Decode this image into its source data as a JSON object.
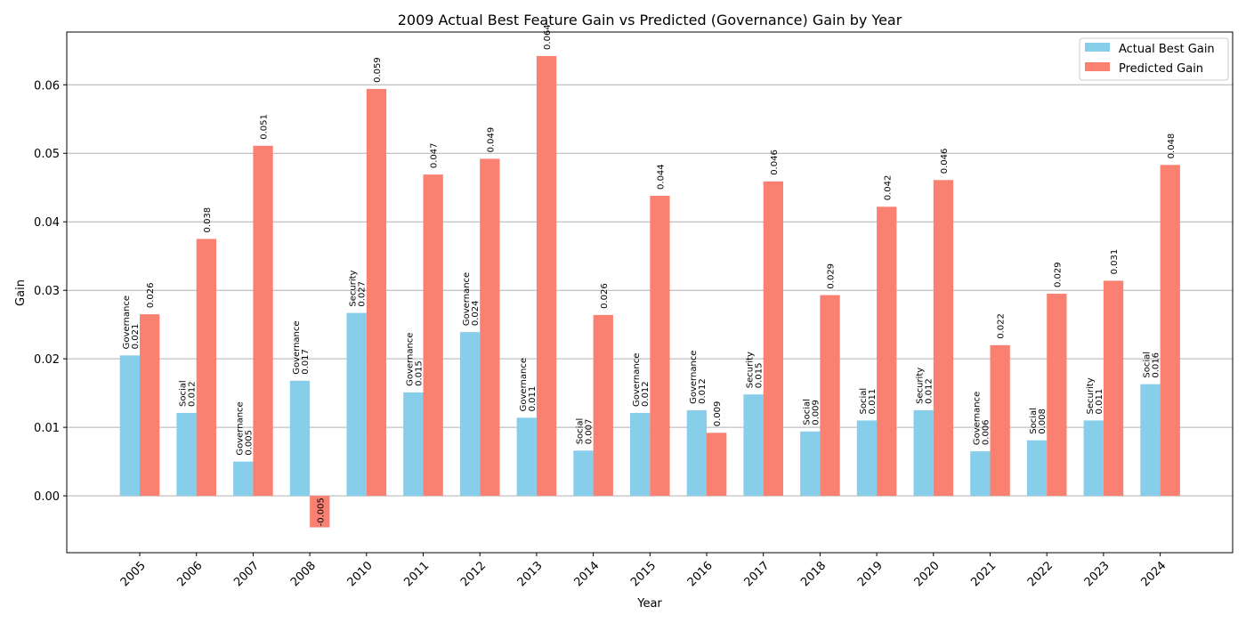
{
  "chart_data": {
    "type": "bar",
    "title": "2009 Actual Best Feature Gain vs Predicted (Governance) Gain by Year",
    "xlabel": "Year",
    "ylabel": "Gain",
    "ylim": [
      -0.0083,
      0.0677
    ],
    "yticks": [
      "0.00",
      "0.01",
      "0.02",
      "0.03",
      "0.04",
      "0.05",
      "0.06"
    ],
    "ytick_values": [
      0,
      0.01,
      0.02,
      0.03,
      0.04,
      0.05,
      0.06
    ],
    "grid": "y-major",
    "legend_position": "top-right",
    "categories": [
      "2005",
      "2006",
      "2007",
      "2008",
      "2010",
      "2011",
      "2012",
      "2013",
      "2014",
      "2015",
      "2016",
      "2017",
      "2018",
      "2019",
      "2020",
      "2021",
      "2022",
      "2023",
      "2024"
    ],
    "series": [
      {
        "name": "Actual Best Gain",
        "color": "#87CEEB",
        "values": [
          0.0205,
          0.0121,
          0.005,
          0.0168,
          0.0267,
          0.0151,
          0.0239,
          0.0114,
          0.0066,
          0.0121,
          0.0125,
          0.0148,
          0.0094,
          0.011,
          0.0125,
          0.0065,
          0.0081,
          0.011,
          0.0163
        ],
        "value_labels": [
          "0.021",
          "0.012",
          "0.005",
          "0.017",
          "0.027",
          "0.015",
          "0.024",
          "0.011",
          "0.007",
          "0.012",
          "0.012",
          "0.015",
          "0.009",
          "0.011",
          "0.012",
          "0.006",
          "0.008",
          "0.011",
          "0.016"
        ],
        "feature_labels": [
          "Governance",
          "Social",
          "Governance",
          "Governance",
          "Security",
          "Governance",
          "Governance",
          "Governance",
          "Social",
          "Governance",
          "Governance",
          "Security",
          "Social",
          "Social",
          "Security",
          "Governance",
          "Social",
          "Security",
          "Social"
        ]
      },
      {
        "name": "Predicted Gain",
        "color": "#FA8072",
        "values": [
          0.0265,
          0.0375,
          0.0511,
          -0.0046,
          0.0594,
          0.0469,
          0.0492,
          0.0642,
          0.0264,
          0.0438,
          0.0092,
          0.0459,
          0.0293,
          0.0422,
          0.0461,
          0.022,
          0.0295,
          0.0314,
          0.0483
        ],
        "value_labels": [
          "0.026",
          "0.038",
          "0.051",
          "-0.005",
          "0.059",
          "0.047",
          "0.049",
          "0.064",
          "0.026",
          "0.044",
          "0.009",
          "0.046",
          "0.029",
          "0.042",
          "0.046",
          "0.022",
          "0.029",
          "0.031",
          "0.048"
        ]
      }
    ]
  }
}
